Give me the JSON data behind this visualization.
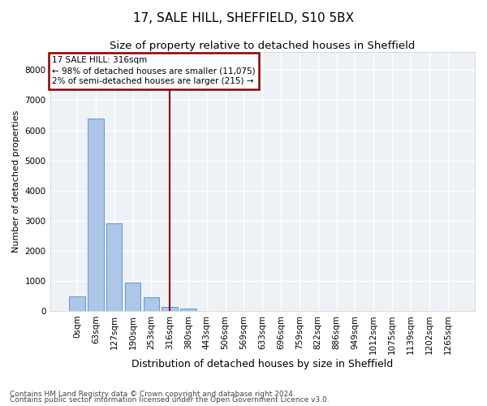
{
  "title1": "17, SALE HILL, SHEFFIELD, S10 5BX",
  "title2": "Size of property relative to detached houses in Sheffield",
  "xlabel": "Distribution of detached houses by size in Sheffield",
  "ylabel": "Number of detached properties",
  "footer1": "Contains HM Land Registry data © Crown copyright and database right 2024.",
  "footer2": "Contains public sector information licensed under the Open Government Licence v3.0.",
  "bar_labels": [
    "0sqm",
    "63sqm",
    "127sqm",
    "190sqm",
    "253sqm",
    "316sqm",
    "380sqm",
    "443sqm",
    "506sqm",
    "569sqm",
    "633sqm",
    "696sqm",
    "759sqm",
    "822sqm",
    "886sqm",
    "949sqm",
    "1012sqm",
    "1075sqm",
    "1139sqm",
    "1202sqm",
    "1265sqm"
  ],
  "bar_values": [
    470,
    6400,
    2900,
    950,
    450,
    130,
    70,
    0,
    0,
    0,
    0,
    0,
    0,
    0,
    0,
    0,
    0,
    0,
    0,
    0,
    0
  ],
  "bar_color": "#aec6e8",
  "bar_edge_color": "#5b9bd5",
  "vline_x": 5,
  "vline_color": "#8b0000",
  "annotation_line1": "17 SALE HILL: 316sqm",
  "annotation_line2": "← 98% of detached houses are smaller (11,075)",
  "annotation_line3": "2% of semi-detached houses are larger (215) →",
  "annotation_box_color": "#8b0000",
  "ylim_max": 8600,
  "yticks": [
    0,
    1000,
    2000,
    3000,
    4000,
    5000,
    6000,
    7000,
    8000
  ],
  "background_color": "#eef2f7",
  "grid_color": "#ffffff",
  "title1_fontsize": 11,
  "title2_fontsize": 9.5,
  "xlabel_fontsize": 9,
  "ylabel_fontsize": 8,
  "tick_fontsize": 7.5,
  "annotation_fontsize": 7.5,
  "footer_fontsize": 6.5
}
